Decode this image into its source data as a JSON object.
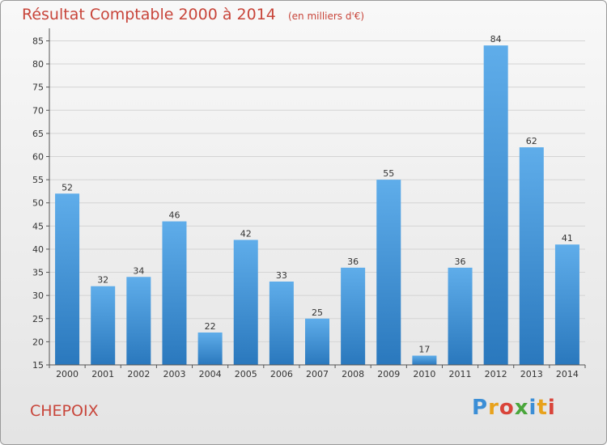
{
  "chart_data": {
    "type": "bar",
    "title": "Résultat Comptable 2000 à 2014",
    "subtitle": "(en milliers d'€)",
    "categories": [
      "2000",
      "2001",
      "2002",
      "2003",
      "2004",
      "2005",
      "2006",
      "2007",
      "2008",
      "2009",
      "2010",
      "2011",
      "2012",
      "2013",
      "2014"
    ],
    "values": [
      52,
      32,
      34,
      46,
      22,
      42,
      33,
      25,
      36,
      55,
      17,
      36,
      84,
      62,
      41
    ],
    "ylim": [
      15,
      87
    ],
    "yticks": [
      15,
      20,
      25,
      30,
      35,
      40,
      45,
      50,
      55,
      60,
      65,
      70,
      75,
      80,
      85
    ],
    "grid": true,
    "xlabel": "",
    "ylabel": ""
  },
  "footer": {
    "commune": "CHEPOIX",
    "logo_letters": [
      "P",
      "r",
      "o",
      "x",
      "i",
      "t",
      "i"
    ],
    "logo_colors": [
      "#3b8ed6",
      "#e8a21c",
      "#d9443a",
      "#4aa63b",
      "#3b8ed6",
      "#e8a21c",
      "#d9443a"
    ]
  },
  "colors": {
    "bar_top": "#5fadea",
    "bar_bottom": "#2a78bd",
    "grid": "#d4d4d4",
    "axis": "#555555",
    "text": "#333333",
    "accent": "#c8453a"
  }
}
